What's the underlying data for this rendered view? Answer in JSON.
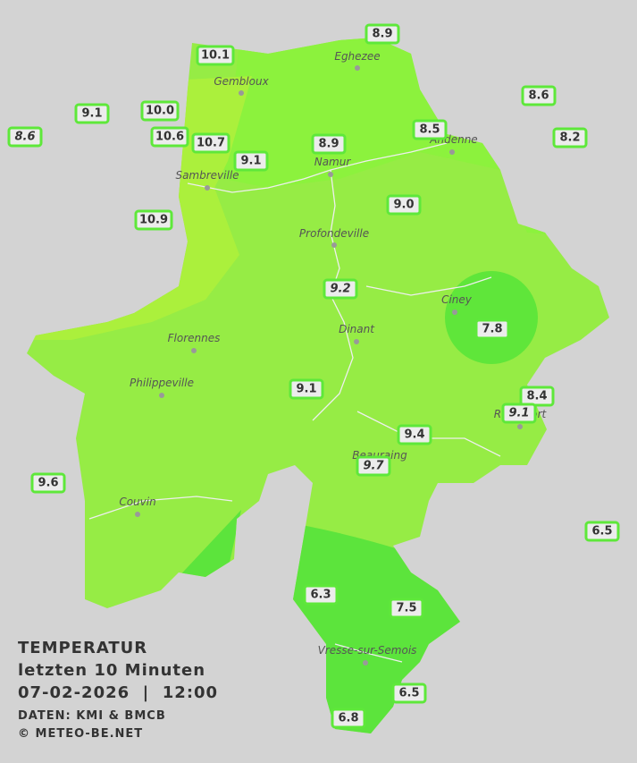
{
  "header": {
    "lines": [
      "TEMPERATUR",
      "letzten 10 Minuten",
      "07-02-2026  |  12:00"
    ],
    "credits": [
      "DATEN: KMI & BMCB",
      "© METEO-BE.NET"
    ]
  },
  "cities": [
    "Eghezee",
    "Gembloux",
    "Andenne",
    "Namur",
    "Sambreville",
    "Profondeville",
    "Ciney",
    "Dinant",
    "Florennes",
    "Philippeville",
    "Rochefort",
    "Beauraing",
    "Couvin",
    "Vresse-sur-Semois"
  ],
  "stations": [
    {
      "label": "8.9",
      "italic": false
    },
    {
      "label": "10.1",
      "italic": false
    },
    {
      "label": "8.6",
      "italic": false
    },
    {
      "label": "9.1",
      "italic": false
    },
    {
      "label": "10.0",
      "italic": false
    },
    {
      "label": "8.6",
      "italic": true
    },
    {
      "label": "10.6",
      "italic": false
    },
    {
      "label": "10.7",
      "italic": false
    },
    {
      "label": "8.9",
      "italic": false
    },
    {
      "label": "8.5",
      "italic": false
    },
    {
      "label": "8.2",
      "italic": false
    },
    {
      "label": "9.1",
      "italic": false
    },
    {
      "label": "9.0",
      "italic": false
    },
    {
      "label": "10.9",
      "italic": false
    },
    {
      "label": "9.2",
      "italic": true
    },
    {
      "label": "7.8",
      "italic": false
    },
    {
      "label": "9.1",
      "italic": false
    },
    {
      "label": "8.4",
      "italic": false
    },
    {
      "label": "9.1",
      "italic": true
    },
    {
      "label": "9.4",
      "italic": false
    },
    {
      "label": "9.7",
      "italic": true
    },
    {
      "label": "9.6",
      "italic": false
    },
    {
      "label": "6.5",
      "italic": false
    },
    {
      "label": "6.3",
      "italic": false
    },
    {
      "label": "7.5",
      "italic": false
    },
    {
      "label": "6.5",
      "italic": false
    },
    {
      "label": "6.8",
      "italic": false
    }
  ]
}
